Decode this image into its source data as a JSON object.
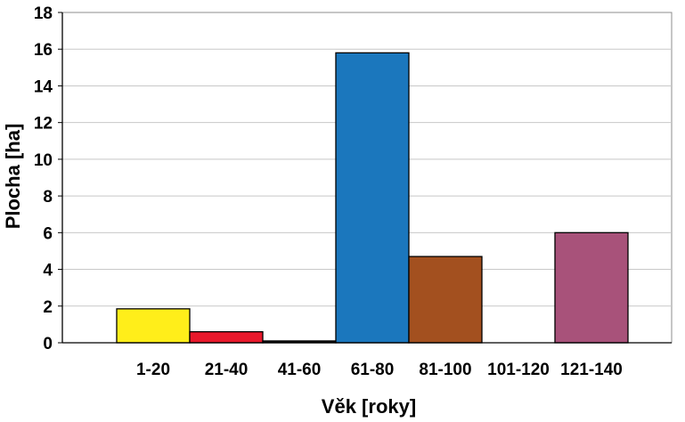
{
  "chart_data": {
    "type": "bar",
    "title": "",
    "xlabel": "Věk [roky]",
    "ylabel": "Plocha [ha]",
    "categories": [
      "1-20",
      "21-40",
      "41-60",
      "61-80",
      "81-100",
      "101-120",
      "121-140"
    ],
    "values": [
      1.85,
      0.6,
      0.1,
      15.8,
      4.7,
      0,
      6.0
    ],
    "colors": [
      "#ffee1a",
      "#e8182b",
      "#1a1a1a",
      "#1b77bd",
      "#a3501f",
      "#ffffff",
      "#a8527a"
    ],
    "ylim": [
      0,
      18
    ],
    "yticks": [
      0,
      2,
      4,
      6,
      8,
      10,
      12,
      14,
      16,
      18
    ],
    "grid": true,
    "legend": "none"
  }
}
